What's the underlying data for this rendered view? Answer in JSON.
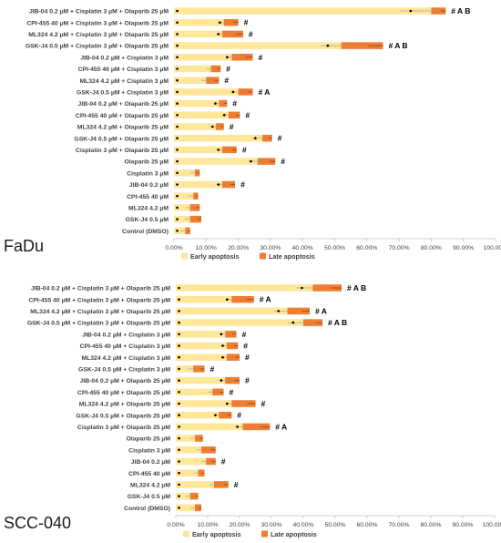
{
  "colors": {
    "early": "#FFE699",
    "late": "#ED7D31",
    "axis": "#BFBFBF",
    "text": "#404040",
    "whisker": "#A6A6A6",
    "dot": "#000000"
  },
  "chart_data": [
    {
      "type": "bar",
      "orientation": "horizontal",
      "stacked": true,
      "panel_label": "FaDu",
      "xlim": [
        0,
        100
      ],
      "xticks": [
        "0.00%",
        "10.00%",
        "20.00%",
        "30.00%",
        "40.00%",
        "50.00%",
        "60.00%",
        "70.00%",
        "80.00%",
        "90.00%",
        "100.00%"
      ],
      "grid": false,
      "legend": "bottom",
      "categories": [
        "JIB-04 0.2 µM + Cisplatin 3 µM + Olaparib 25 µM",
        "CPI-455 40 µM + Cisplatin 3 µM + Olaparib 25 µM",
        "ML324 4.2 µM + Cisplatin 3 µM + Olaparib 25 µM",
        "GSK-J4 0.5 µM + Cisplatin 3 µM + Olaparib 25 µM",
        "JIB-04 0.2 µM + Cisplatin 3 µM",
        "CPI-455 40 µM + Cisplatin 3 µM",
        "ML324 4.2 µM + Cisplatin 3 µM",
        "GSK-J4 0.5 µM + Cisplatin 3 µM",
        "JIB-04 0.2 µM + Olaparib 25 µM",
        "CPI-455 40 µM + Olaparib 25 µM",
        "ML324 4.2 µM + Olaparib 25 µM",
        "GSK-J4 0.5 µM + Olaparib 25 µM",
        "Cisplatin 3 µM + Olaparib 25 µM",
        "Olaparib 25 µM",
        "Cisplatin 3 µM",
        "JIB-04 0.2 µM",
        "CPI-455 40 µM",
        "ML324 4.2 µM",
        "GSK-J4 0.5 µM",
        "Control (DMSO)"
      ],
      "series": [
        {
          "name": "Early apoptosis",
          "values": [
            80,
            15.5,
            15,
            52,
            18,
            11.5,
            10,
            20,
            14,
            17,
            13,
            27.5,
            15,
            26,
            6.5,
            15,
            6,
            5,
            5,
            3.5
          ]
        },
        {
          "name": "Late apoptosis",
          "values": [
            4.5,
            4.5,
            6.5,
            13,
            6.5,
            3,
            4,
            4.5,
            2.5,
            3.5,
            2.5,
            3,
            4.5,
            5.5,
            1.5,
            4,
            1.5,
            3,
            3.5,
            1.5
          ]
        }
      ],
      "annotations": [
        "# A B",
        "#",
        "#",
        "# A B",
        "#",
        "#",
        "#",
        "# A",
        "#",
        "#",
        "#",
        "#",
        "#",
        "#",
        "",
        "#",
        "",
        "",
        "",
        ""
      ]
    },
    {
      "type": "bar",
      "orientation": "horizontal",
      "stacked": true,
      "panel_label": "SCC-040",
      "xlim": [
        0,
        100
      ],
      "xticks": [
        "0.00%",
        "10.00%",
        "20.00%",
        "30.00%",
        "40.00%",
        "50.00%",
        "60.00%",
        "70.00%",
        "80.00%",
        "90.00%",
        "100.00%"
      ],
      "grid": false,
      "legend": "bottom",
      "categories": [
        "JIB-04 0.2 µM + Cisplatin 3 µM + Olaparib 25 µM",
        "CPI-455 40 µM + Cisplatin 3 µM + Olaparib 25 µM",
        "ML324 4.2 µM + Cisplatin 3 µM + Olaparib 25 µM",
        "GSK-J4 0.5 µM + Cisplatin 3 µM + Olaparib 25 µM",
        "JIB-04 0.2 µM + Cisplatin 3 µM",
        "CPI-455 40 µM + Cisplatin 3 µM",
        "ML324 4.2 µM + Cisplatin 3 µM",
        "GSK-J4 0.5 µM + Cisplatin 3 µM",
        "JIB-04 0.2 µM + Olaparib 25 µM",
        "CPI-455 40 µM + Olaparib 25 µM",
        "ML324 4.2 µM + Olaparib 25 µM",
        "GSK-J4 0.5 µM + Olaparib 25 µM",
        "Cisplatin 3 µM + Olaparib 25 µM",
        "Olaparib 25 µM",
        "Cisplatin 3 µM",
        "JIB-04 0.2 µM",
        "CPI-455 40 µM",
        "ML324 4.2 µM",
        "GSK-J4 0.5 µM",
        "Control (DMSO)"
      ],
      "series": [
        {
          "name": "Early apoptosis",
          "values": [
            43,
            17.5,
            35,
            40,
            15.5,
            16,
            16,
            5.5,
            15.5,
            11.5,
            17.5,
            13.5,
            21,
            6,
            8,
            9.5,
            7,
            12,
            4.5,
            6
          ]
        },
        {
          "name": "Late apoptosis",
          "values": [
            9,
            7,
            7,
            6,
            3.5,
            3.5,
            4,
            3.5,
            4.5,
            3.5,
            7.5,
            4,
            8.5,
            2.5,
            4.5,
            3,
            2,
            4.5,
            2.5,
            2
          ]
        }
      ],
      "annotations": [
        "# A B",
        "# A",
        "# A",
        "# A B",
        "#",
        "#",
        "#",
        "#",
        "#",
        "#",
        "#",
        "#",
        "# A",
        "",
        "",
        "#",
        "",
        "#",
        "",
        ""
      ]
    }
  ]
}
